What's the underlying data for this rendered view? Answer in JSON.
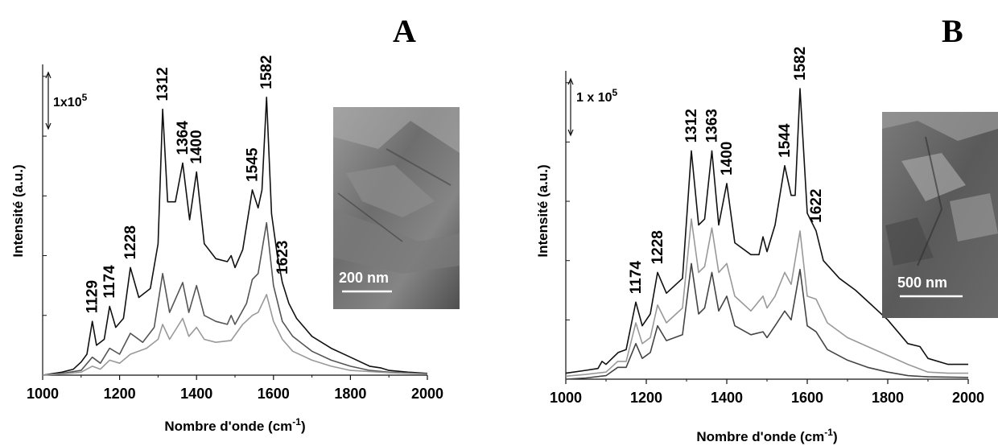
{
  "chart_data": [
    {
      "panel": "A",
      "type": "line",
      "xlabel": "Nombre d'onde (cm",
      "xlabel_sup": "-1",
      "xlabel_close": ")",
      "ylabel": "Intensité (a.u.)",
      "xlim": [
        1000,
        2000
      ],
      "xticks": [
        1000,
        1200,
        1400,
        1600,
        1800,
        2000
      ],
      "ylim": [
        0,
        5.2
      ],
      "scale_bar": {
        "text": "1x10",
        "sup": "5",
        "value": 1
      },
      "peaks": [
        {
          "x": 1129,
          "label": "1129"
        },
        {
          "x": 1174,
          "label": "1174"
        },
        {
          "x": 1228,
          "label": "1228"
        },
        {
          "x": 1312,
          "label": "1312"
        },
        {
          "x": 1364,
          "label": "1364"
        },
        {
          "x": 1400,
          "label": "1400"
        },
        {
          "x": 1545,
          "label": "1545"
        },
        {
          "x": 1582,
          "label": "1582"
        },
        {
          "x": 1623,
          "label": "1623"
        }
      ],
      "inset": {
        "scale_text": "200 nm"
      },
      "series": [
        {
          "color": "#111111",
          "points": [
            [
              1000,
              0.0
            ],
            [
              1050,
              0.05
            ],
            [
              1080,
              0.1
            ],
            [
              1100,
              0.22
            ],
            [
              1115,
              0.35
            ],
            [
              1129,
              0.9
            ],
            [
              1140,
              0.5
            ],
            [
              1160,
              0.6
            ],
            [
              1174,
              1.15
            ],
            [
              1190,
              0.8
            ],
            [
              1210,
              0.95
            ],
            [
              1228,
              1.8
            ],
            [
              1250,
              1.3
            ],
            [
              1280,
              1.45
            ],
            [
              1300,
              2.2
            ],
            [
              1312,
              4.45
            ],
            [
              1325,
              2.9
            ],
            [
              1345,
              2.9
            ],
            [
              1364,
              3.55
            ],
            [
              1382,
              2.6
            ],
            [
              1400,
              3.4
            ],
            [
              1420,
              2.2
            ],
            [
              1450,
              1.95
            ],
            [
              1480,
              1.9
            ],
            [
              1490,
              2.0
            ],
            [
              1500,
              1.8
            ],
            [
              1520,
              2.1
            ],
            [
              1545,
              3.1
            ],
            [
              1560,
              2.8
            ],
            [
              1570,
              3.1
            ],
            [
              1582,
              4.65
            ],
            [
              1595,
              2.7
            ],
            [
              1610,
              2.0
            ],
            [
              1623,
              1.55
            ],
            [
              1640,
              1.2
            ],
            [
              1660,
              0.95
            ],
            [
              1700,
              0.65
            ],
            [
              1750,
              0.45
            ],
            [
              1800,
              0.3
            ],
            [
              1850,
              0.15
            ],
            [
              1880,
              0.12
            ],
            [
              1900,
              0.08
            ],
            [
              1950,
              0.05
            ],
            [
              2000,
              0.03
            ]
          ]
        },
        {
          "color": "#555555",
          "points": [
            [
              1000,
              0.0
            ],
            [
              1050,
              0.03
            ],
            [
              1100,
              0.08
            ],
            [
              1129,
              0.3
            ],
            [
              1150,
              0.2
            ],
            [
              1174,
              0.45
            ],
            [
              1200,
              0.35
            ],
            [
              1228,
              0.7
            ],
            [
              1260,
              0.55
            ],
            [
              1290,
              0.8
            ],
            [
              1312,
              1.7
            ],
            [
              1330,
              1.05
            ],
            [
              1364,
              1.55
            ],
            [
              1380,
              1.05
            ],
            [
              1400,
              1.5
            ],
            [
              1420,
              1.0
            ],
            [
              1450,
              0.9
            ],
            [
              1480,
              0.85
            ],
            [
              1490,
              1.0
            ],
            [
              1500,
              0.85
            ],
            [
              1530,
              1.2
            ],
            [
              1545,
              1.6
            ],
            [
              1560,
              1.7
            ],
            [
              1582,
              2.55
            ],
            [
              1600,
              1.5
            ],
            [
              1623,
              0.9
            ],
            [
              1650,
              0.65
            ],
            [
              1700,
              0.4
            ],
            [
              1750,
              0.25
            ],
            [
              1800,
              0.15
            ],
            [
              1850,
              0.08
            ],
            [
              1900,
              0.05
            ],
            [
              2000,
              0.02
            ]
          ]
        },
        {
          "color": "#999999",
          "points": [
            [
              1000,
              0.0
            ],
            [
              1050,
              0.02
            ],
            [
              1100,
              0.05
            ],
            [
              1129,
              0.15
            ],
            [
              1150,
              0.1
            ],
            [
              1174,
              0.25
            ],
            [
              1200,
              0.2
            ],
            [
              1228,
              0.35
            ],
            [
              1270,
              0.45
            ],
            [
              1300,
              0.6
            ],
            [
              1312,
              0.85
            ],
            [
              1330,
              0.6
            ],
            [
              1364,
              0.95
            ],
            [
              1380,
              0.65
            ],
            [
              1400,
              0.8
            ],
            [
              1420,
              0.6
            ],
            [
              1450,
              0.55
            ],
            [
              1490,
              0.58
            ],
            [
              1520,
              0.85
            ],
            [
              1545,
              1.0
            ],
            [
              1560,
              1.05
            ],
            [
              1582,
              1.35
            ],
            [
              1600,
              0.9
            ],
            [
              1623,
              0.6
            ],
            [
              1650,
              0.4
            ],
            [
              1700,
              0.25
            ],
            [
              1750,
              0.15
            ],
            [
              1800,
              0.08
            ],
            [
              1900,
              0.04
            ],
            [
              2000,
              0.02
            ]
          ]
        }
      ]
    },
    {
      "panel": "B",
      "type": "line",
      "xlabel": "Nombre d'onde (cm",
      "xlabel_sup": "-1",
      "xlabel_close": ")",
      "ylabel": "Intensité (a.u.)",
      "xlim": [
        1000,
        2000
      ],
      "xticks": [
        1000,
        1200,
        1400,
        1600,
        1800,
        2000
      ],
      "ylim": [
        0,
        5.2
      ],
      "scale_bar": {
        "text": "1 x 10",
        "sup": "5",
        "value": 1
      },
      "peaks": [
        {
          "x": 1174,
          "label": "1174"
        },
        {
          "x": 1228,
          "label": "1228"
        },
        {
          "x": 1312,
          "label": "1312"
        },
        {
          "x": 1363,
          "label": "1363"
        },
        {
          "x": 1400,
          "label": "1400"
        },
        {
          "x": 1544,
          "label": "1544"
        },
        {
          "x": 1582,
          "label": "1582"
        },
        {
          "x": 1622,
          "label": "1622"
        }
      ],
      "inset": {
        "scale_text": "500 nm"
      },
      "series": [
        {
          "color": "#111111",
          "points": [
            [
              1000,
              0.1
            ],
            [
              1050,
              0.15
            ],
            [
              1080,
              0.18
            ],
            [
              1090,
              0.3
            ],
            [
              1100,
              0.25
            ],
            [
              1130,
              0.45
            ],
            [
              1150,
              0.5
            ],
            [
              1174,
              1.3
            ],
            [
              1190,
              0.9
            ],
            [
              1210,
              1.1
            ],
            [
              1228,
              1.8
            ],
            [
              1250,
              1.45
            ],
            [
              1290,
              1.7
            ],
            [
              1312,
              3.85
            ],
            [
              1330,
              2.6
            ],
            [
              1345,
              2.7
            ],
            [
              1363,
              3.85
            ],
            [
              1380,
              2.6
            ],
            [
              1400,
              3.3
            ],
            [
              1420,
              2.3
            ],
            [
              1460,
              2.1
            ],
            [
              1480,
              2.1
            ],
            [
              1490,
              2.4
            ],
            [
              1500,
              2.15
            ],
            [
              1520,
              2.6
            ],
            [
              1544,
              3.6
            ],
            [
              1560,
              3.1
            ],
            [
              1570,
              3.1
            ],
            [
              1582,
              4.9
            ],
            [
              1600,
              2.8
            ],
            [
              1622,
              2.5
            ],
            [
              1640,
              2.0
            ],
            [
              1680,
              1.7
            ],
            [
              1720,
              1.5
            ],
            [
              1760,
              1.25
            ],
            [
              1800,
              1.0
            ],
            [
              1850,
              0.6
            ],
            [
              1880,
              0.55
            ],
            [
              1900,
              0.35
            ],
            [
              1950,
              0.25
            ],
            [
              2000,
              0.25
            ]
          ]
        },
        {
          "color": "#999999",
          "points": [
            [
              1000,
              0.05
            ],
            [
              1050,
              0.08
            ],
            [
              1100,
              0.12
            ],
            [
              1129,
              0.3
            ],
            [
              1150,
              0.3
            ],
            [
              1174,
              0.95
            ],
            [
              1190,
              0.6
            ],
            [
              1210,
              0.7
            ],
            [
              1228,
              1.25
            ],
            [
              1250,
              0.95
            ],
            [
              1290,
              1.2
            ],
            [
              1312,
              2.7
            ],
            [
              1330,
              1.8
            ],
            [
              1345,
              1.9
            ],
            [
              1363,
              2.55
            ],
            [
              1380,
              1.8
            ],
            [
              1400,
              1.95
            ],
            [
              1420,
              1.4
            ],
            [
              1460,
              1.15
            ],
            [
              1490,
              1.4
            ],
            [
              1500,
              1.2
            ],
            [
              1520,
              1.4
            ],
            [
              1544,
              1.8
            ],
            [
              1560,
              1.6
            ],
            [
              1582,
              2.5
            ],
            [
              1600,
              1.4
            ],
            [
              1622,
              1.35
            ],
            [
              1650,
              0.95
            ],
            [
              1700,
              0.7
            ],
            [
              1750,
              0.55
            ],
            [
              1800,
              0.4
            ],
            [
              1850,
              0.25
            ],
            [
              1900,
              0.12
            ],
            [
              1950,
              0.1
            ],
            [
              2000,
              0.1
            ]
          ]
        },
        {
          "color": "#444444",
          "points": [
            [
              1000,
              0.0
            ],
            [
              1050,
              0.02
            ],
            [
              1100,
              0.06
            ],
            [
              1129,
              0.2
            ],
            [
              1150,
              0.2
            ],
            [
              1174,
              0.6
            ],
            [
              1190,
              0.35
            ],
            [
              1210,
              0.45
            ],
            [
              1228,
              0.9
            ],
            [
              1250,
              0.65
            ],
            [
              1290,
              0.75
            ],
            [
              1312,
              1.95
            ],
            [
              1330,
              1.1
            ],
            [
              1345,
              1.2
            ],
            [
              1363,
              1.8
            ],
            [
              1380,
              1.15
            ],
            [
              1400,
              1.4
            ],
            [
              1420,
              0.9
            ],
            [
              1460,
              0.75
            ],
            [
              1490,
              0.8
            ],
            [
              1500,
              0.7
            ],
            [
              1520,
              0.9
            ],
            [
              1544,
              1.15
            ],
            [
              1560,
              1.0
            ],
            [
              1582,
              1.85
            ],
            [
              1600,
              0.9
            ],
            [
              1622,
              0.8
            ],
            [
              1650,
              0.5
            ],
            [
              1700,
              0.32
            ],
            [
              1750,
              0.2
            ],
            [
              1800,
              0.12
            ],
            [
              1850,
              0.06
            ],
            [
              1900,
              0.04
            ],
            [
              2000,
              0.03
            ]
          ]
        }
      ]
    }
  ]
}
